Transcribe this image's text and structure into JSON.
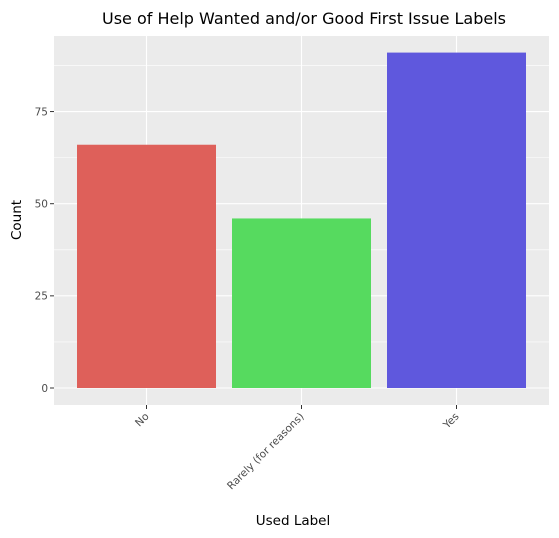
{
  "chart_data": {
    "type": "bar",
    "title": "Use of Help Wanted and/or Good First Issue Labels",
    "xlabel": "Used Label",
    "ylabel": "Count",
    "categories": [
      "No",
      "Rarely (for reasons)",
      "Yes"
    ],
    "values": [
      66,
      46,
      91
    ],
    "colors": [
      "#de605a",
      "#56da5f",
      "#5f58dd"
    ],
    "ylim": [
      0,
      95.5
    ],
    "yticks": [
      0,
      25,
      50,
      75
    ],
    "ytick_labels": [
      "0",
      "25",
      "50",
      "75"
    ],
    "grid": true,
    "background": "#ebebeb",
    "grid_color": "#ffffff",
    "legend": "none"
  }
}
